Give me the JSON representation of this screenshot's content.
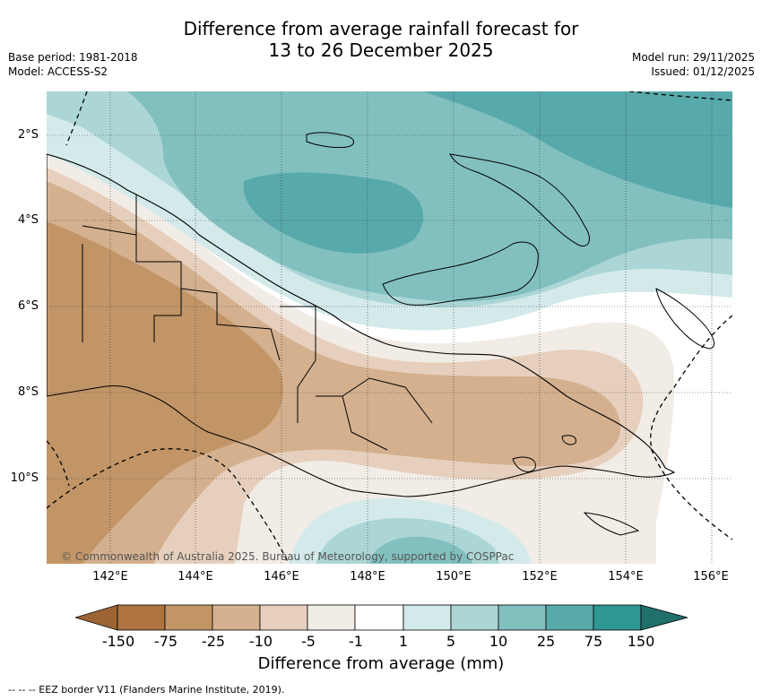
{
  "header": {
    "title_line1": "Difference from average rainfall forecast for",
    "title_line2": "13 to 26 December 2025",
    "base_period": "Base period: 1981-2018",
    "model": "Model: ACCESS-S2",
    "model_run": "Model run: 29/11/2025",
    "issued": "Issued: 01/12/2025"
  },
  "map": {
    "latitude_labels": [
      "2°S",
      "4°S",
      "6°S",
      "8°S",
      "10°S"
    ],
    "longitude_labels": [
      "142°E",
      "144°E",
      "146°E",
      "148°E",
      "150°E",
      "152°E",
      "154°E",
      "156°E"
    ],
    "copyright": "© Commonwealth of Australia 2025. Bureau of Meteorology, supported by COSPPac"
  },
  "colorbar": {
    "label": "Difference from average (mm)",
    "ticks": [
      "-150",
      "-75",
      "-25",
      "-10",
      "-5",
      "-1",
      "1",
      "5",
      "10",
      "25",
      "75",
      "150"
    ],
    "colors": [
      "#9c6435",
      "#ad7440",
      "#c29567",
      "#d4b08f",
      "#e6d0bd",
      "#f2ece6",
      "#ffffff",
      "#d4eaea",
      "#acd6d6",
      "#82c0c0",
      "#58a9aa",
      "#2e9693",
      "#20706e"
    ]
  },
  "footnote": "-- -- -- EEZ border V11 (Flanders Marine Institute, 2019)."
}
